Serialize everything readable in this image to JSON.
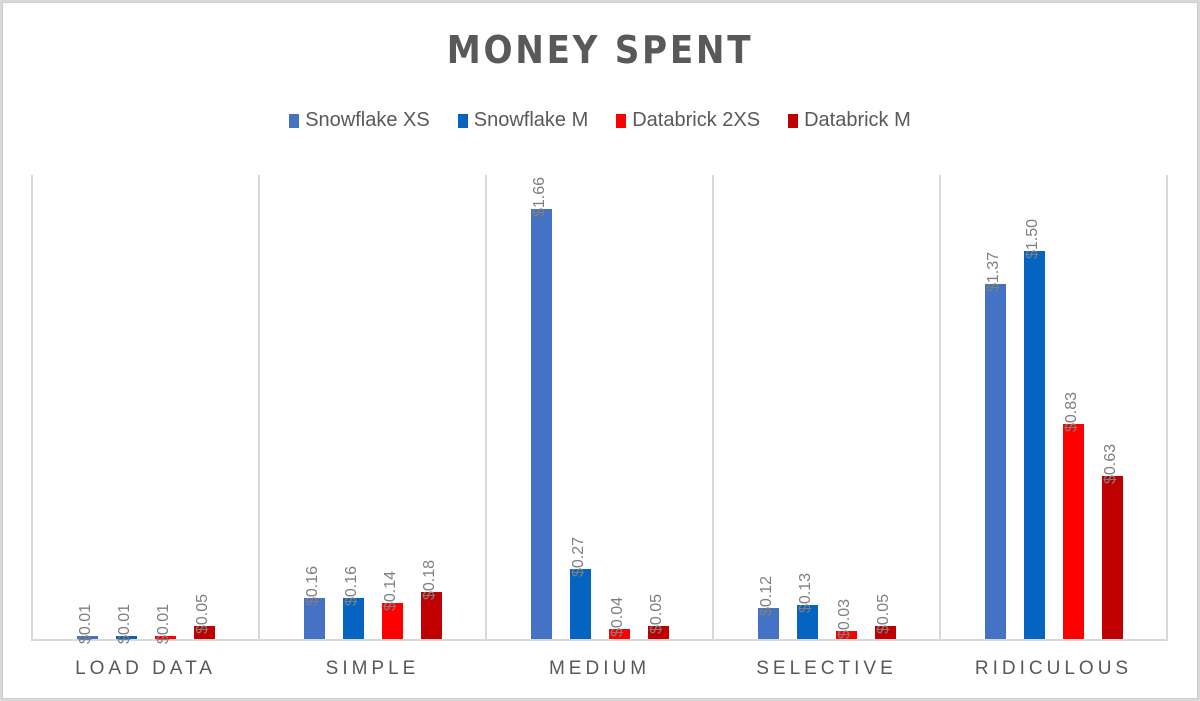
{
  "chart_data": {
    "type": "bar",
    "title": "MONEY SPENT",
    "xlabel": "",
    "ylabel": "",
    "ylim": [
      0,
      1.8
    ],
    "grid": false,
    "legend_position": "top",
    "categories": [
      "LOAD DATA",
      "SIMPLE",
      "MEDIUM",
      "SELECTIVE",
      "RIDICULOUS"
    ],
    "series": [
      {
        "name": "Snowflake XS",
        "color": "#4472c4",
        "values": [
          0.01,
          0.16,
          1.66,
          0.12,
          1.37
        ],
        "labels": [
          "$0.01",
          "$0.16",
          "$1.66",
          "$0.12",
          "$1.37"
        ]
      },
      {
        "name": "Snowflake M",
        "color": "#0563c1",
        "values": [
          0.01,
          0.16,
          0.27,
          0.13,
          1.5
        ],
        "labels": [
          "$0.01",
          "$0.16",
          "$0.27",
          "$0.13",
          "$1.50"
        ]
      },
      {
        "name": "Databrick 2XS",
        "color": "#ff0000",
        "values": [
          0.01,
          0.14,
          0.04,
          0.03,
          0.83
        ],
        "labels": [
          "$0.01",
          "$0.14",
          "$0.04",
          "$0.03",
          "$0.83"
        ]
      },
      {
        "name": "Databrick M",
        "color": "#c00000",
        "values": [
          0.05,
          0.18,
          0.05,
          0.05,
          0.63
        ],
        "labels": [
          "$0.05",
          "$0.18",
          "$0.05",
          "$0.05",
          "$0.63"
        ]
      }
    ]
  }
}
